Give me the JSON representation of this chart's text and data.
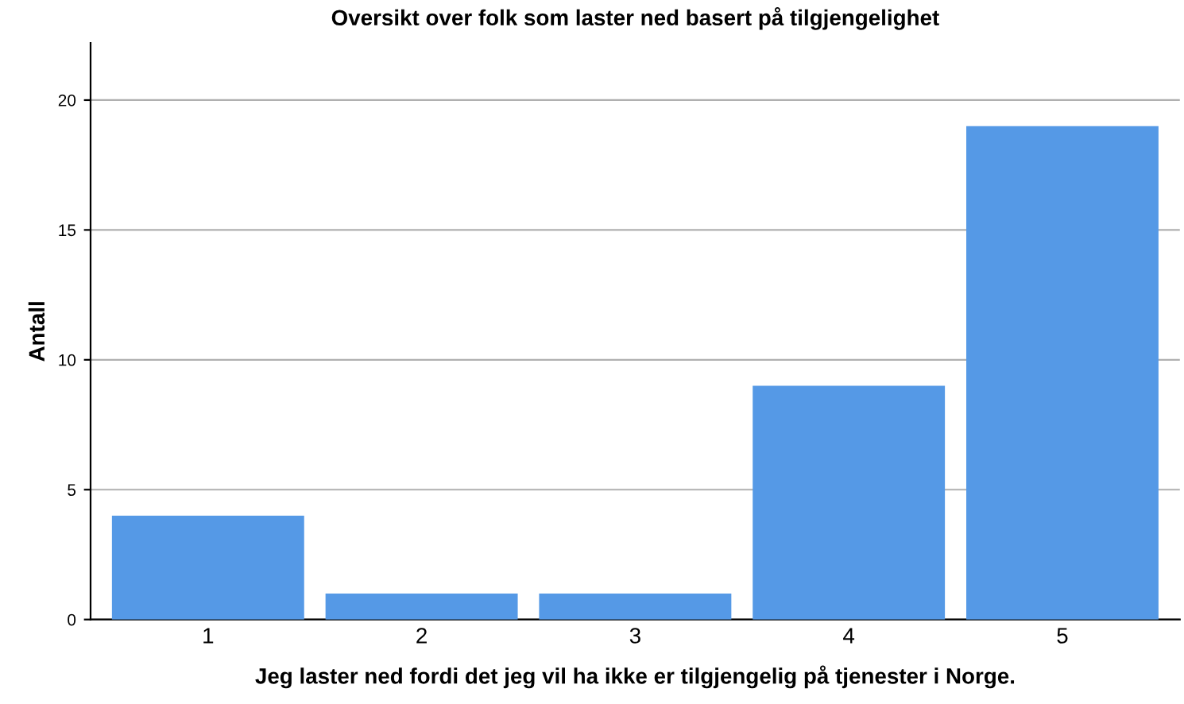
{
  "chart_data": {
    "type": "bar",
    "title": "Oversikt over folk som laster ned basert på tilgjengelighet",
    "xlabel": "Jeg laster ned fordi det jeg vil ha ikke er tilgjengelig på tjenester i Norge.",
    "ylabel": "Antall",
    "categories": [
      "1",
      "2",
      "3",
      "4",
      "5"
    ],
    "values": [
      4,
      1,
      1,
      9,
      19
    ],
    "color": "#5599e6",
    "ylim": [
      0,
      22.2
    ],
    "yticks": [
      0,
      5,
      10,
      15,
      20
    ],
    "grid": "y"
  }
}
